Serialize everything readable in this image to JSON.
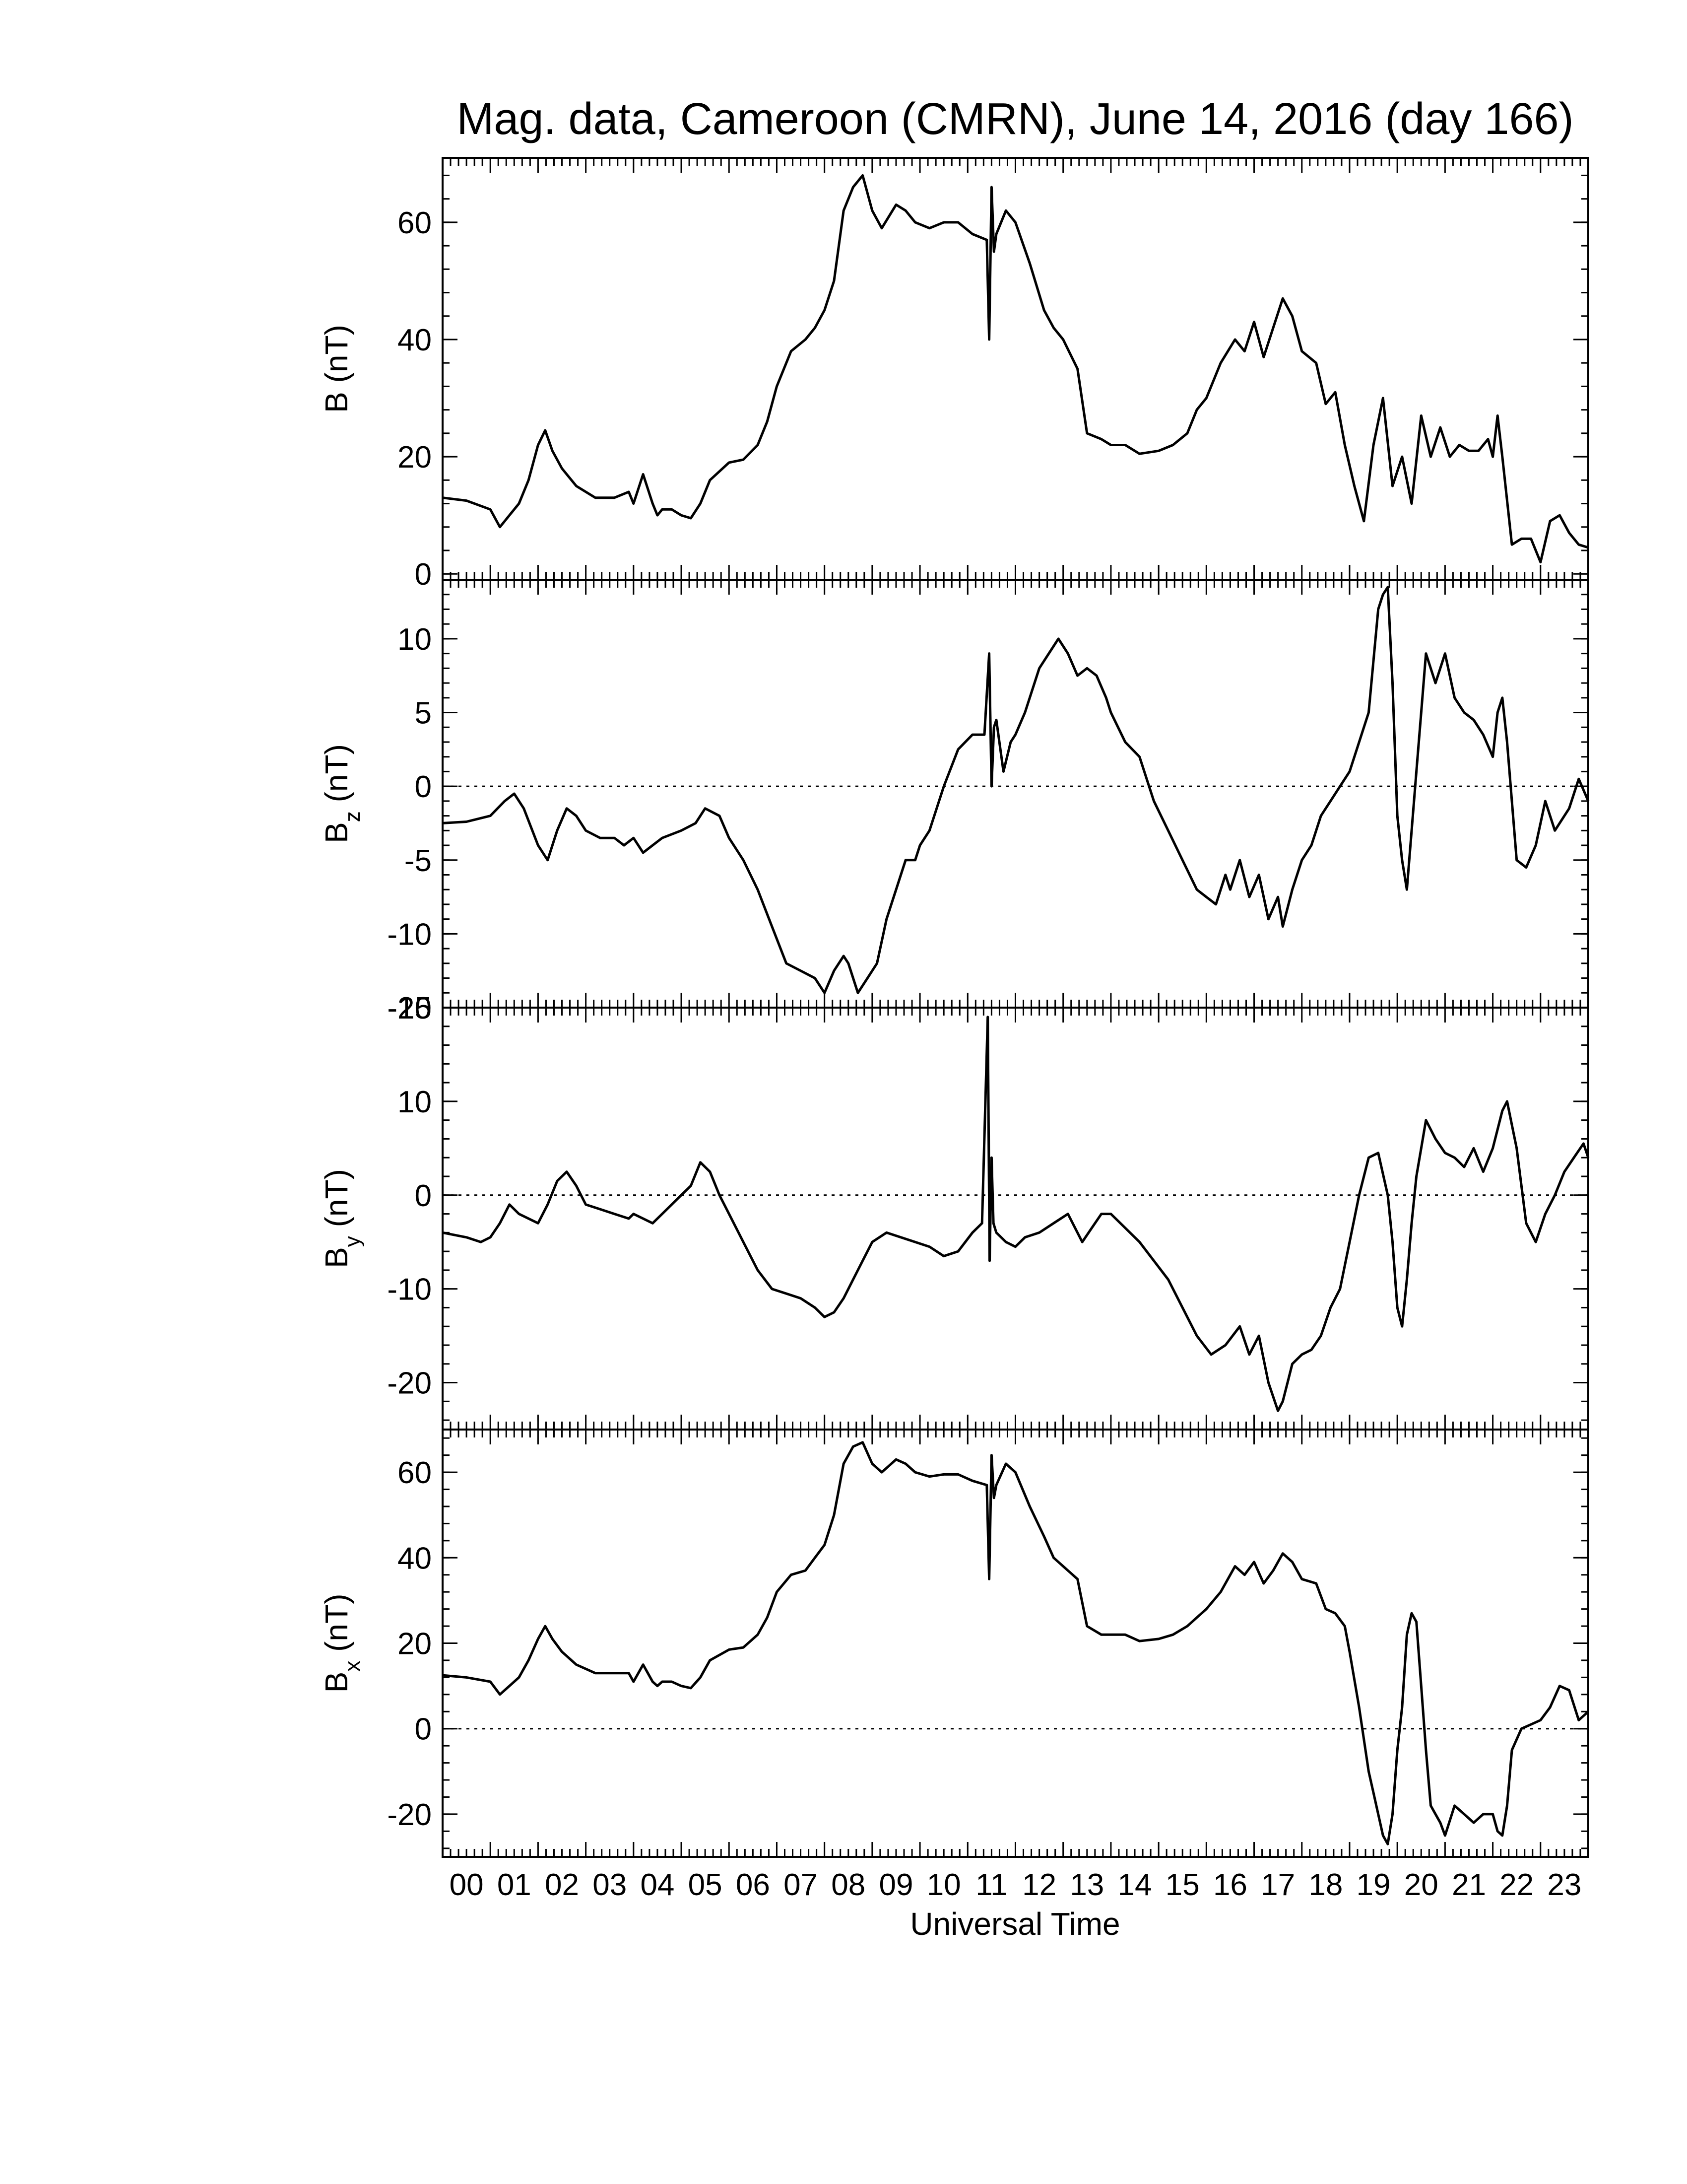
{
  "title": "Mag. data, Cameroon (CMRN), June 14, 2016 (day 166)",
  "xlabel": "Universal Time",
  "x_ticks": [
    "00",
    "01",
    "02",
    "03",
    "04",
    "05",
    "06",
    "07",
    "08",
    "09",
    "10",
    "11",
    "12",
    "13",
    "14",
    "15",
    "16",
    "17",
    "18",
    "19",
    "20",
    "21",
    "22",
    "23"
  ],
  "chart_data": [
    {
      "type": "line",
      "id": "B",
      "ylabel_main": "B (nT)",
      "ylabel_sub": "",
      "ylim": [
        -1,
        71
      ],
      "yticks": [
        0,
        20,
        40,
        60
      ],
      "zero_line": false,
      "series": [
        {
          "x": [
            0,
            0.5,
            1.0,
            1.2,
            1.4,
            1.6,
            1.8,
            2.0,
            2.15,
            2.3,
            2.5,
            2.8,
            3.2,
            3.6,
            3.9,
            4.0,
            4.2,
            4.4,
            4.5,
            4.6,
            4.8,
            5.0,
            5.2,
            5.4,
            5.6,
            6.0,
            6.3,
            6.6,
            6.8,
            7.0,
            7.3,
            7.6,
            7.8,
            8.0,
            8.2,
            8.4,
            8.6,
            8.8,
            9.0,
            9.2,
            9.5,
            9.7,
            9.9,
            10.2,
            10.5,
            10.8,
            11.1,
            11.4,
            11.45,
            11.5,
            11.55,
            11.6,
            11.8,
            12.0,
            12.3,
            12.6,
            12.8,
            13.0,
            13.3,
            13.5,
            13.8,
            14.0,
            14.3,
            14.6,
            15.0,
            15.3,
            15.6,
            15.8,
            16.0,
            16.3,
            16.6,
            16.8,
            17.0,
            17.2,
            17.4,
            17.6,
            17.8,
            18.0,
            18.3,
            18.5,
            18.7,
            18.9,
            19.1,
            19.3,
            19.5,
            19.7,
            19.9,
            20.1,
            20.3,
            20.5,
            20.7,
            20.9,
            21.1,
            21.3,
            21.5,
            21.7,
            21.9,
            22.0,
            22.1,
            22.2,
            22.4,
            22.6,
            22.8,
            23.0,
            23.2,
            23.4,
            23.6,
            23.8,
            24.0
          ],
          "y": [
            13,
            12.5,
            11,
            8,
            10,
            12,
            16,
            22,
            24.5,
            21,
            18,
            15,
            13,
            13,
            14,
            12,
            17,
            12,
            10,
            11,
            11,
            10,
            9.5,
            12,
            16,
            19,
            19.5,
            22,
            26,
            32,
            38,
            40,
            42,
            45,
            50,
            62,
            66,
            68,
            62,
            59,
            63,
            62,
            60,
            59,
            60,
            60,
            58,
            57,
            40,
            66,
            55,
            58,
            62,
            60,
            53,
            45,
            42,
            40,
            35,
            24,
            23,
            22,
            22,
            20.5,
            21,
            22,
            24,
            28,
            30,
            36,
            40,
            38,
            43,
            37,
            42,
            47,
            44,
            38,
            36,
            29,
            31,
            22,
            15,
            9,
            22,
            30,
            15,
            20,
            12,
            27,
            20,
            25,
            20,
            22,
            21,
            21,
            23,
            20,
            27,
            20,
            5,
            6,
            6,
            2,
            9,
            10,
            7,
            5,
            4.5
          ]
        }
      ]
    },
    {
      "type": "line",
      "id": "Bz",
      "ylabel_main": "B",
      "ylabel_sub": "z",
      "ylabel_unit": " (nT)",
      "ylim": [
        -15,
        14
      ],
      "yticks": [
        -15,
        -10,
        -5,
        0,
        5,
        10
      ],
      "zero_line": true,
      "series": [
        {
          "x": [
            0,
            0.5,
            1.0,
            1.3,
            1.5,
            1.7,
            2.0,
            2.2,
            2.4,
            2.6,
            2.8,
            3.0,
            3.3,
            3.6,
            3.8,
            4.0,
            4.2,
            4.4,
            4.6,
            5.0,
            5.3,
            5.5,
            5.8,
            6.0,
            6.3,
            6.6,
            6.9,
            7.2,
            7.5,
            7.8,
            8.0,
            8.2,
            8.4,
            8.5,
            8.7,
            8.9,
            9.1,
            9.3,
            9.5,
            9.7,
            9.9,
            10.0,
            10.2,
            10.5,
            10.8,
            11.1,
            11.35,
            11.45,
            11.5,
            11.55,
            11.6,
            11.75,
            11.9,
            12.0,
            12.2,
            12.5,
            12.7,
            12.9,
            13.1,
            13.3,
            13.5,
            13.7,
            13.9,
            14.0,
            14.3,
            14.6,
            14.9,
            15.2,
            15.5,
            15.8,
            16.0,
            16.2,
            16.4,
            16.5,
            16.7,
            16.9,
            17.1,
            17.3,
            17.5,
            17.6,
            17.8,
            18.0,
            18.2,
            18.4,
            18.6,
            18.8,
            19.0,
            19.2,
            19.4,
            19.6,
            19.7,
            19.8,
            19.9,
            20.0,
            20.1,
            20.2,
            20.3,
            20.4,
            20.5,
            20.6,
            20.8,
            21.0,
            21.2,
            21.4,
            21.6,
            21.8,
            22.0,
            22.1,
            22.2,
            22.3,
            22.5,
            22.7,
            22.9,
            23.1,
            23.3,
            23.6,
            23.8,
            24.0
          ],
          "y": [
            -2.5,
            -2.4,
            -2,
            -1,
            -0.5,
            -1.5,
            -4,
            -5,
            -3,
            -1.5,
            -2,
            -3,
            -3.5,
            -3.5,
            -4,
            -3.5,
            -4.5,
            -4,
            -3.5,
            -3,
            -2.5,
            -1.5,
            -2,
            -3.5,
            -5,
            -7,
            -9.5,
            -12,
            -12.5,
            -13,
            -14,
            -12.5,
            -11.5,
            -12,
            -14,
            -13,
            -12,
            -9,
            -7,
            -5,
            -5,
            -4,
            -3,
            0,
            2.5,
            3.5,
            3.5,
            9,
            0,
            4,
            4.5,
            1,
            3,
            3.5,
            5,
            8,
            9,
            10,
            9,
            7.5,
            8,
            7.5,
            6,
            5,
            3,
            2,
            -1,
            -3,
            -5,
            -7,
            -7.5,
            -8,
            -6,
            -7,
            -5,
            -7.5,
            -6,
            -9,
            -7.5,
            -9.5,
            -7,
            -5,
            -4,
            -2,
            -1,
            0,
            1,
            3,
            5,
            12,
            13,
            13.5,
            7,
            -2,
            -5,
            -7,
            -3,
            1,
            5,
            9,
            7,
            9,
            6,
            5,
            4.5,
            3.5,
            2,
            5,
            6,
            3,
            -5,
            -5.5,
            -4,
            -1,
            -3,
            -1.5,
            0.5,
            -1
          ]
        }
      ]
    },
    {
      "type": "line",
      "id": "By",
      "ylabel_main": "B",
      "ylabel_sub": "y",
      "ylabel_unit": " (nT)",
      "ylim": [
        -25,
        20
      ],
      "yticks": [
        -20,
        -10,
        0,
        10,
        20
      ],
      "zero_line": true,
      "series": [
        {
          "x": [
            0,
            0.5,
            0.8,
            1.0,
            1.2,
            1.4,
            1.6,
            1.8,
            2.0,
            2.2,
            2.4,
            2.6,
            2.8,
            3.0,
            3.3,
            3.6,
            3.9,
            4.0,
            4.2,
            4.4,
            4.6,
            4.8,
            5.0,
            5.2,
            5.4,
            5.6,
            5.8,
            6.0,
            6.3,
            6.6,
            6.9,
            7.2,
            7.5,
            7.8,
            8.0,
            8.2,
            8.4,
            8.6,
            8.8,
            9.0,
            9.3,
            9.6,
            9.9,
            10.2,
            10.5,
            10.8,
            11.1,
            11.3,
            11.42,
            11.46,
            11.5,
            11.54,
            11.6,
            11.8,
            12.0,
            12.2,
            12.5,
            12.8,
            13.1,
            13.4,
            13.6,
            13.8,
            14.0,
            14.3,
            14.6,
            14.9,
            15.2,
            15.5,
            15.8,
            16.1,
            16.4,
            16.7,
            16.9,
            17.1,
            17.3,
            17.5,
            17.6,
            17.7,
            17.8,
            18.0,
            18.2,
            18.4,
            18.6,
            18.8,
            19.0,
            19.2,
            19.4,
            19.6,
            19.8,
            19.9,
            20.0,
            20.1,
            20.2,
            20.3,
            20.4,
            20.5,
            20.6,
            20.8,
            21.0,
            21.2,
            21.4,
            21.6,
            21.8,
            22.0,
            22.2,
            22.3,
            22.5,
            22.7,
            22.9,
            23.1,
            23.3,
            23.5,
            23.7,
            23.9,
            24.0
          ],
          "y": [
            -4,
            -4.5,
            -5,
            -4.5,
            -3,
            -1,
            -2,
            -2.5,
            -3,
            -1,
            1.5,
            2.5,
            1,
            -1,
            -1.5,
            -2,
            -2.5,
            -2,
            -2.5,
            -3,
            -2,
            -1,
            0,
            1,
            3.5,
            2.5,
            0,
            -2,
            -5,
            -8,
            -10,
            -10.5,
            -11,
            -12,
            -13,
            -12.5,
            -11,
            -9,
            -7,
            -5,
            -4,
            -4.5,
            -5,
            -5.5,
            -6.5,
            -6,
            -4,
            -3,
            19,
            -7,
            4,
            -3,
            -4,
            -5,
            -5.5,
            -4.5,
            -4,
            -3,
            -2,
            -5,
            -3.5,
            -2,
            -2,
            -3.5,
            -5,
            -7,
            -9,
            -12,
            -15,
            -17,
            -16,
            -14,
            -17,
            -15,
            -20,
            -23,
            -22,
            -20,
            -18,
            -17,
            -16.5,
            -15,
            -12,
            -10,
            -5,
            0,
            4,
            4.5,
            0,
            -5,
            -12,
            -14,
            -9,
            -3,
            2,
            5,
            8,
            6,
            4.5,
            4,
            3,
            5,
            2.5,
            5,
            9,
            10,
            5,
            -3,
            -5,
            -2,
            0,
            2.5,
            4,
            5.5,
            4
          ]
        }
      ]
    },
    {
      "type": "line",
      "id": "Bx",
      "ylabel_main": "B",
      "ylabel_sub": "x",
      "ylabel_unit": " (nT)",
      "ylim": [
        -30,
        70
      ],
      "yticks": [
        -20,
        0,
        20,
        40,
        60
      ],
      "zero_line": true,
      "series": [
        {
          "x": [
            0,
            0.5,
            1.0,
            1.2,
            1.4,
            1.6,
            1.8,
            2.0,
            2.15,
            2.3,
            2.5,
            2.8,
            3.2,
            3.6,
            3.9,
            4.0,
            4.2,
            4.4,
            4.5,
            4.6,
            4.8,
            5.0,
            5.2,
            5.4,
            5.6,
            6.0,
            6.3,
            6.6,
            6.8,
            7.0,
            7.3,
            7.6,
            7.8,
            8.0,
            8.2,
            8.4,
            8.6,
            8.8,
            9.0,
            9.2,
            9.5,
            9.7,
            9.9,
            10.2,
            10.5,
            10.8,
            11.1,
            11.4,
            11.45,
            11.5,
            11.55,
            11.6,
            11.8,
            12.0,
            12.3,
            12.6,
            12.8,
            13.0,
            13.3,
            13.5,
            13.8,
            14.0,
            14.3,
            14.6,
            15.0,
            15.3,
            15.6,
            15.8,
            16.0,
            16.3,
            16.6,
            16.8,
            17.0,
            17.2,
            17.4,
            17.6,
            17.8,
            18.0,
            18.3,
            18.5,
            18.7,
            18.9,
            19.0,
            19.2,
            19.4,
            19.5,
            19.6,
            19.7,
            19.8,
            19.9,
            20.0,
            20.1,
            20.2,
            20.3,
            20.4,
            20.5,
            20.6,
            20.7,
            20.8,
            20.9,
            21.0,
            21.2,
            21.4,
            21.6,
            21.8,
            22.0,
            22.1,
            22.2,
            22.3,
            22.4,
            22.6,
            22.8,
            23.0,
            23.2,
            23.4,
            23.6,
            23.8,
            24.0
          ],
          "y": [
            12.5,
            12,
            11,
            8,
            10,
            12,
            16,
            21,
            24,
            21,
            18,
            15,
            13,
            13,
            13,
            11,
            15,
            11,
            10,
            11,
            11,
            10,
            9.5,
            12,
            16,
            18.5,
            19,
            22,
            26,
            32,
            36,
            37,
            40,
            43,
            50,
            62,
            66,
            67,
            62,
            60,
            63,
            62,
            60,
            59,
            59.5,
            59.5,
            58,
            57,
            35,
            64,
            54,
            57,
            62,
            60,
            52,
            45,
            40,
            38,
            35,
            24,
            22,
            22,
            22,
            20.5,
            21,
            22,
            24,
            26,
            28,
            32,
            38,
            36,
            39,
            34,
            37,
            41,
            39,
            35,
            34,
            28,
            27,
            24,
            18,
            5,
            -10,
            -15,
            -20,
            -25,
            -27,
            -20,
            -5,
            5,
            22,
            27,
            25,
            10,
            -5,
            -18,
            -20,
            -22,
            -25,
            -18,
            -20,
            -22,
            -20,
            -20,
            -24,
            -25,
            -18,
            -5,
            0,
            1,
            2,
            5,
            10,
            9,
            2,
            4
          ]
        }
      ]
    }
  ]
}
